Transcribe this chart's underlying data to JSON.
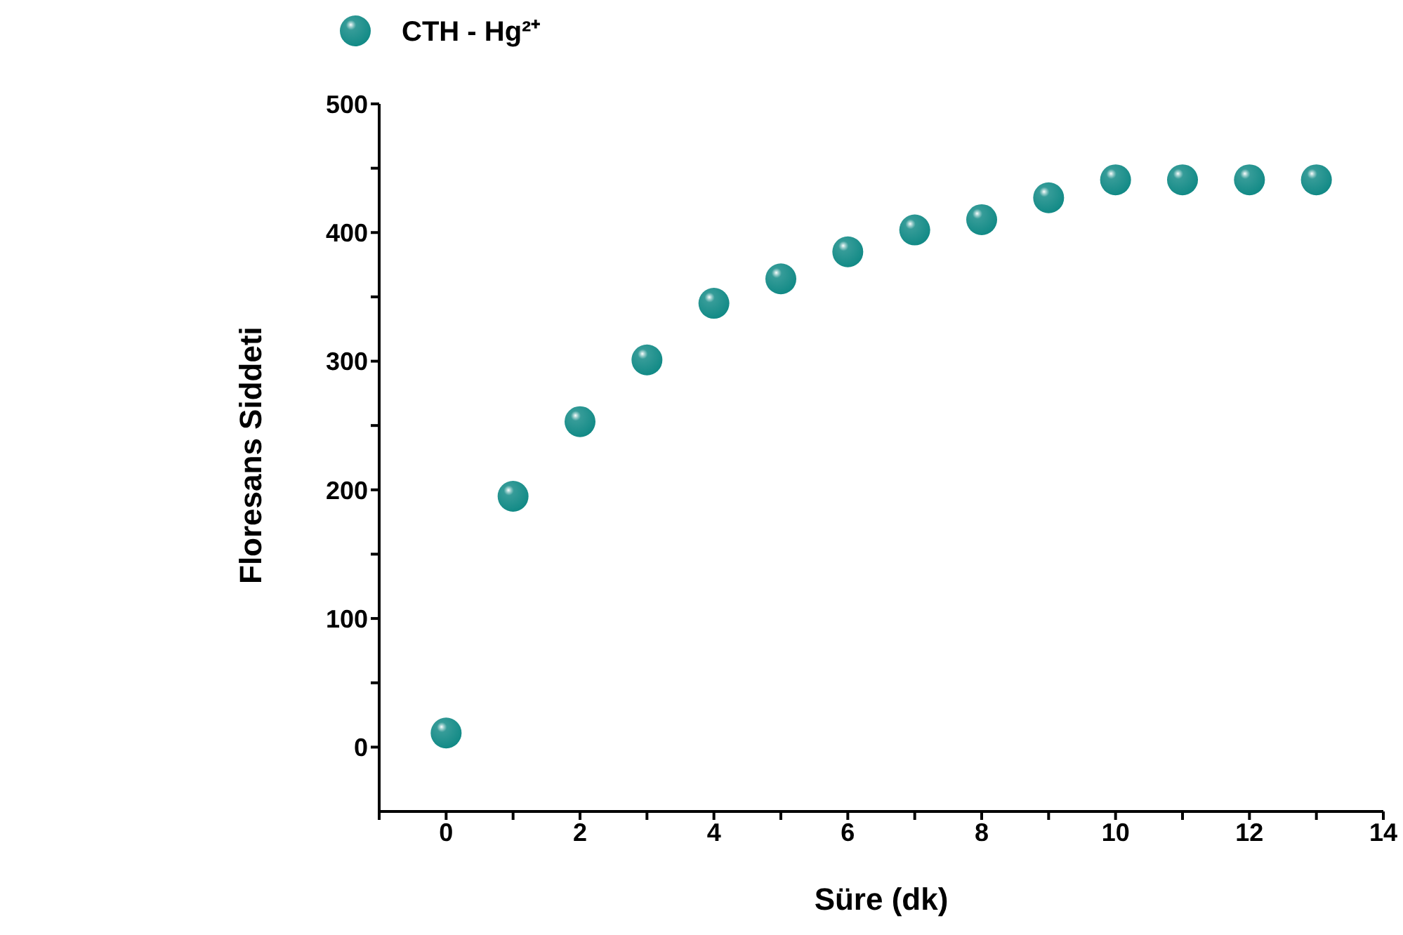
{
  "chart_data": {
    "type": "scatter",
    "xlabel": "Süre (dk)",
    "ylabel": "Floresans Siddeti",
    "x": [
      0,
      1,
      2,
      3,
      4,
      5,
      6,
      7,
      8,
      9,
      10,
      11,
      12,
      13
    ],
    "series": [
      {
        "name": "CTH - Hg²⁺",
        "color": "#128a86",
        "values": [
          11,
          195,
          253,
          301,
          345,
          364,
          385,
          402,
          410,
          427,
          441,
          441,
          441,
          441
        ]
      }
    ],
    "xlim": [
      -1,
      14
    ],
    "xticks": [
      {
        "value": -1,
        "label": null
      },
      0,
      {
        "value": 1,
        "label": null
      },
      2,
      {
        "value": 3,
        "label": null
      },
      4,
      {
        "value": 5,
        "label": null
      },
      6,
      {
        "value": 7,
        "label": null
      },
      8,
      {
        "value": 9,
        "label": null
      },
      10,
      {
        "value": 11,
        "label": null
      },
      12,
      {
        "value": 13,
        "label": null
      },
      14
    ],
    "ylim": [
      -50,
      500
    ],
    "yticks": [
      0,
      {
        "value": 50,
        "label": null
      },
      100,
      {
        "value": 150,
        "label": null
      },
      200,
      {
        "value": 250,
        "label": null
      },
      300,
      {
        "value": 350,
        "label": null
      },
      400,
      {
        "value": 450,
        "label": null
      },
      500
    ],
    "legend": "top left",
    "marker": "circle",
    "grid": false
  }
}
